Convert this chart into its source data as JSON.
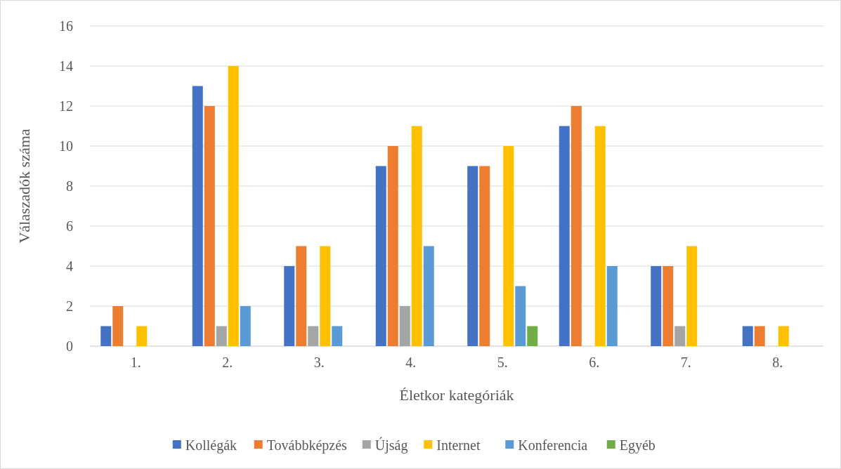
{
  "chart_data": {
    "type": "bar",
    "xlabel": "Életkor kategóriák",
    "ylabel": "Válaszadók száma",
    "categories": [
      "1.",
      "2.",
      "3.",
      "4.",
      "5.",
      "6.",
      "7.",
      "8."
    ],
    "series": [
      {
        "name": "Kollégák",
        "color": "#4472c4",
        "values": [
          1,
          13,
          4,
          9,
          9,
          11,
          4,
          1
        ]
      },
      {
        "name": "Továbbképzés",
        "color": "#ed7d31",
        "values": [
          2,
          12,
          5,
          10,
          9,
          12,
          4,
          1
        ]
      },
      {
        "name": "Újság",
        "color": "#a5a5a5",
        "values": [
          0,
          1,
          1,
          2,
          0,
          0,
          1,
          0
        ]
      },
      {
        "name": "Internet",
        "color": "#ffc000",
        "values": [
          1,
          14,
          5,
          11,
          10,
          11,
          5,
          1
        ]
      },
      {
        "name": "Konferencia",
        "color": "#5b9bd5",
        "values": [
          0,
          2,
          1,
          5,
          3,
          4,
          0,
          0
        ]
      },
      {
        "name": "Egyéb",
        "color": "#70ad47",
        "values": [
          0,
          0,
          0,
          0,
          1,
          0,
          0,
          0
        ]
      }
    ],
    "ylim": [
      0,
      16
    ],
    "yticks": [
      0,
      2,
      4,
      6,
      8,
      10,
      12,
      14,
      16
    ],
    "grid": "y",
    "legend": "bottom"
  }
}
